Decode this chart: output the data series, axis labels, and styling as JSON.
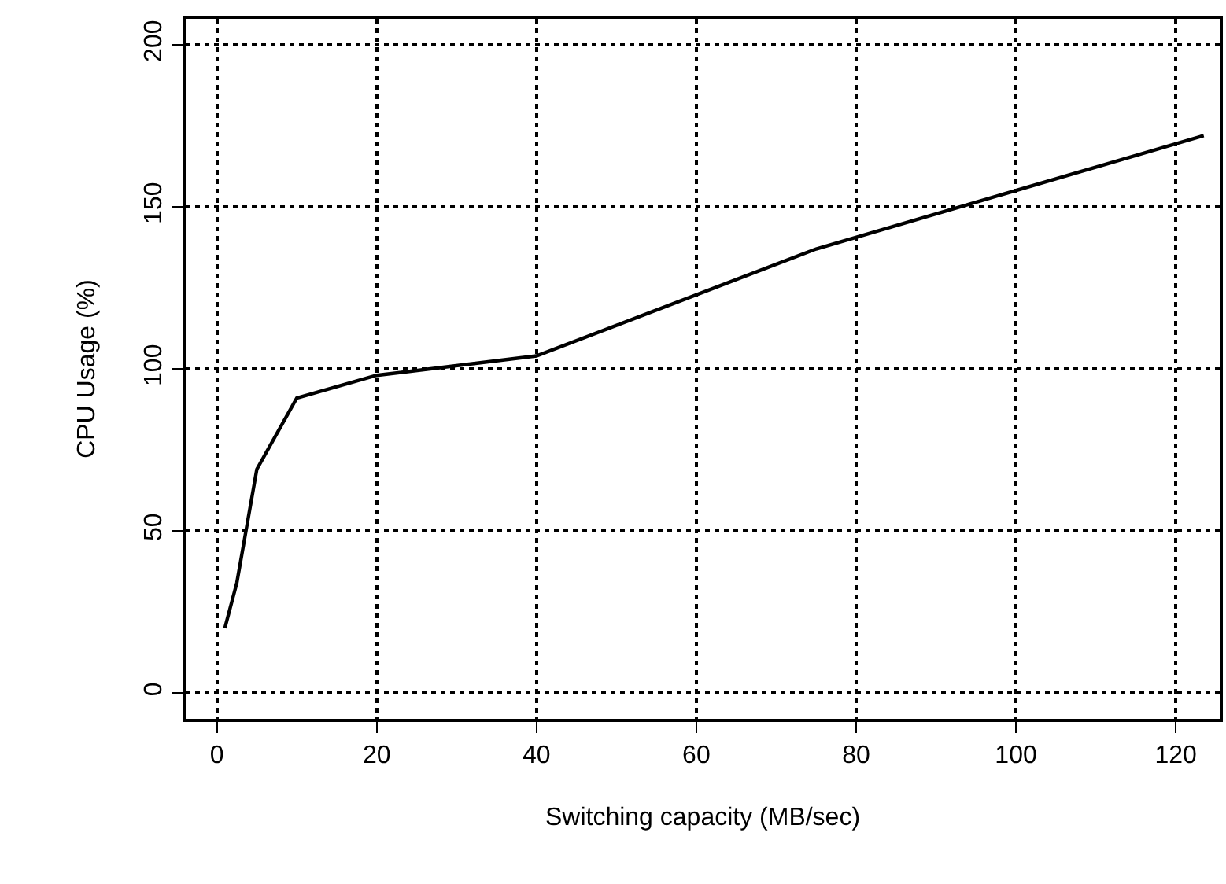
{
  "chart_data": {
    "type": "line",
    "xlabel": "Switching capacity (MB/sec)",
    "ylabel": "CPU Usage (%)",
    "x": [
      1,
      2.5,
      5,
      10,
      20,
      40,
      75,
      123.5
    ],
    "series": [
      {
        "color": "#000000",
        "values": [
          20,
          34,
          69,
          91,
          98,
          104,
          137,
          172
        ]
      }
    ],
    "xlim": [
      -3.9,
      125.5
    ],
    "ylim": [
      -8,
      208
    ],
    "xticks": [
      0,
      20,
      40,
      60,
      80,
      100,
      120
    ],
    "yticks": [
      0,
      50,
      100,
      150,
      200
    ],
    "grid": true,
    "line_style": "solid",
    "marker": "none"
  }
}
